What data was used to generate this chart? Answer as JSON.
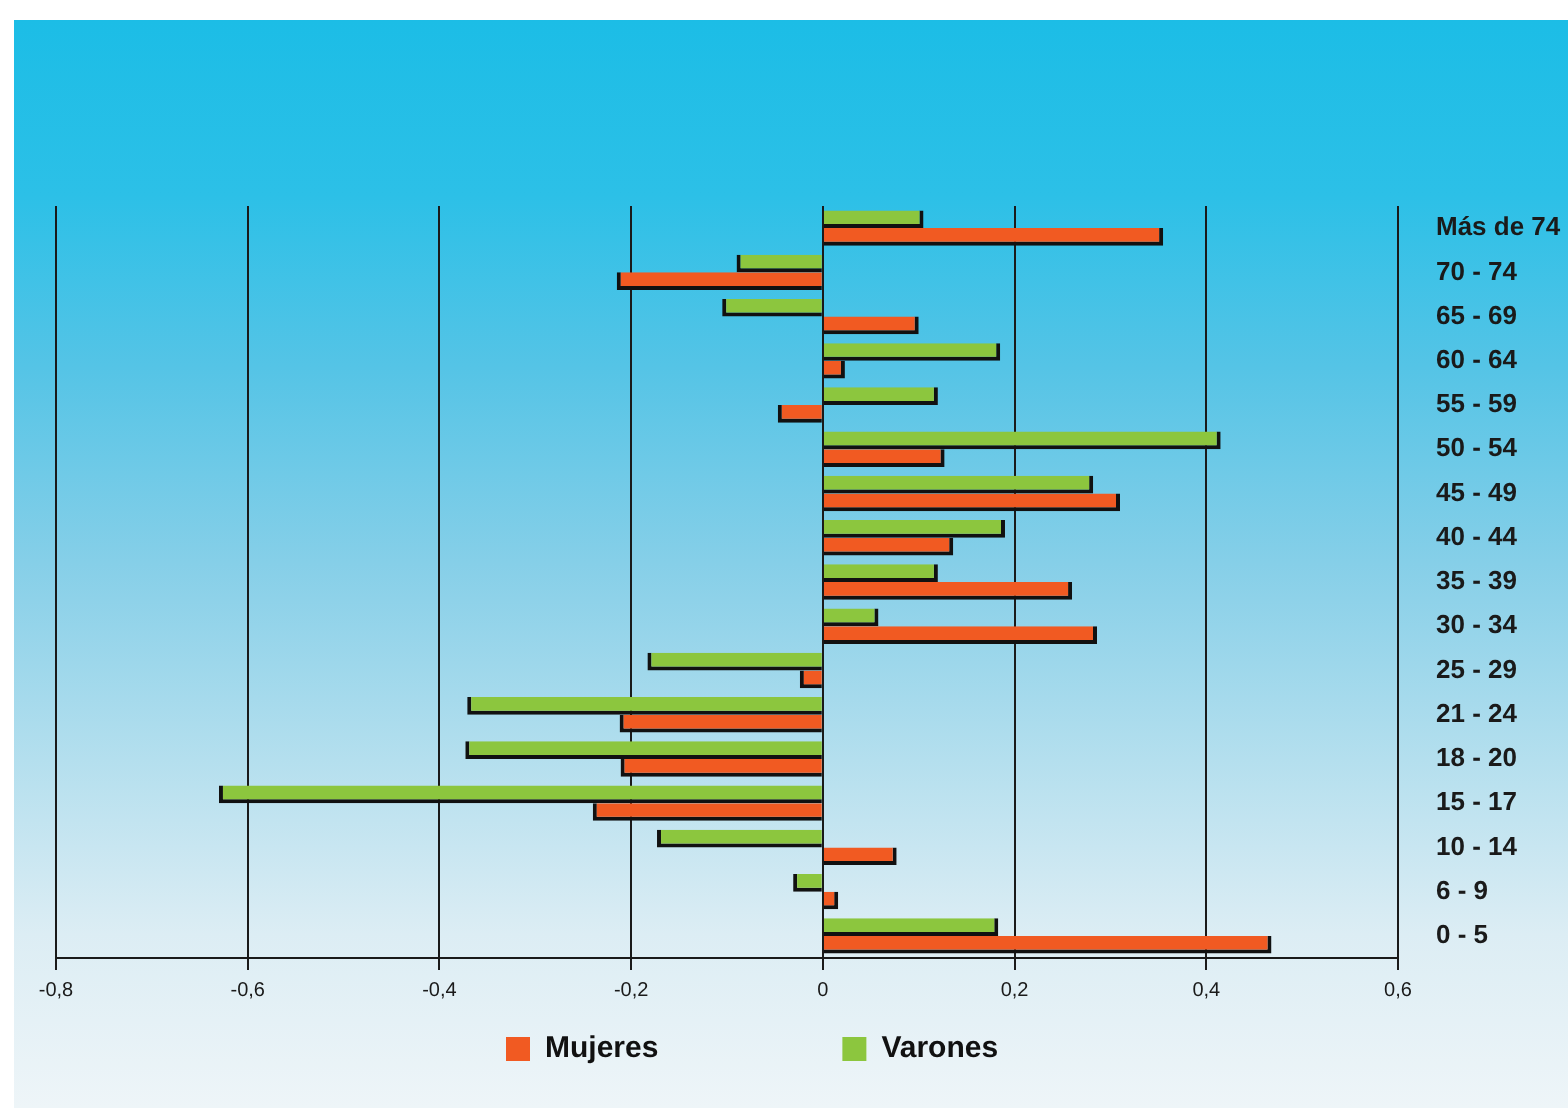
{
  "chart_data": {
    "type": "bar",
    "orientation": "horizontal",
    "categories": [
      "Más de 74",
      "70 - 74",
      "65 - 69",
      "60 - 64",
      "55 - 59",
      "50 - 54",
      "45 - 49",
      "40 - 44",
      "35 - 39",
      "30 - 34",
      "25 - 29",
      "21 - 24",
      "18 - 20",
      "15 - 17",
      "10 - 14",
      "6 - 9",
      "0 - 5"
    ],
    "series": [
      {
        "name": "Mujeres",
        "color": "#f15a22",
        "values": [
          0.355,
          -0.215,
          0.1,
          0.023,
          -0.047,
          0.127,
          0.31,
          0.136,
          0.26,
          0.286,
          -0.024,
          -0.212,
          -0.211,
          -0.24,
          0.077,
          0.016,
          0.468
        ]
      },
      {
        "name": "Varones",
        "color": "#8cc63e",
        "values": [
          0.105,
          -0.09,
          -0.105,
          0.185,
          0.12,
          0.415,
          0.282,
          0.19,
          0.12,
          0.058,
          -0.183,
          -0.371,
          -0.373,
          -0.63,
          -0.173,
          -0.031,
          0.183
        ]
      }
    ],
    "xlim": [
      -0.8,
      0.6
    ],
    "xticks": [
      {
        "value": -0.8,
        "label": "-0,8"
      },
      {
        "value": -0.6,
        "label": "-0,6"
      },
      {
        "value": -0.4,
        "label": "-0,4"
      },
      {
        "value": -0.2,
        "label": "-0,2"
      },
      0,
      {
        "value": 0.2,
        "label": "0,2"
      },
      {
        "value": 0.4,
        "label": "0,4"
      },
      {
        "value": 0.6,
        "label": "0,6"
      }
    ],
    "grid": "x",
    "legend": "bottom"
  }
}
